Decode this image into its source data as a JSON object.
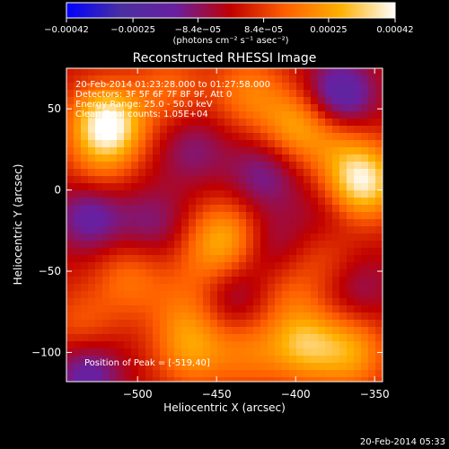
{
  "chart_data": {
    "type": "heatmap",
    "title": "Reconstructed RHESSI Image",
    "xlabel": "Heliocentric X (arcsec)",
    "ylabel": "Heliocentric Y (arcsec)",
    "xlim": [
      -545,
      -345
    ],
    "ylim": [
      -118,
      75
    ],
    "xticks": [
      -500,
      -450,
      -400,
      -350
    ],
    "xtick_labels": [
      "−500",
      "−450",
      "−400",
      "−350"
    ],
    "yticks": [
      50,
      0,
      -50,
      -100
    ],
    "ytick_labels": [
      "50",
      "0",
      "−50",
      "−100"
    ],
    "colorbar": {
      "range": [
        -0.00042,
        0.00042
      ],
      "ticks": [
        -0.00042,
        -0.00025,
        -8.4e-05,
        8.4e-05,
        0.00025,
        0.00042
      ],
      "tick_labels": [
        "−0.00042",
        "−0.00025",
        "−8.4e−05",
        "8.4e−05",
        "0.00025",
        "0.00042"
      ],
      "units": "(photons cm⁻² s⁻¹ asec⁻²)",
      "colors": [
        "#0000ff",
        "#4b2fa0",
        "#6a1fa0",
        "#c00000",
        "#ff6000",
        "#ffb000",
        "#ffffff"
      ]
    },
    "annotations": [
      "20-Feb-2014 01:23:28.000  to 01:27:58.000",
      "Detectors: 3F 5F 6F 7F 8F 9F, Att 0",
      "Energy Range: 25.0 - 50.0 keV",
      "Clean      Total counts: 1.05E+04",
      "Position of Peak = [-519,40]"
    ],
    "sources": [
      {
        "x": -519,
        "y": 40,
        "value": 0.00042
      },
      {
        "x": -358,
        "y": 5,
        "value": 0.00038
      },
      {
        "x": -445,
        "y": -30,
        "value": 0.00024
      },
      {
        "x": -400,
        "y": 40,
        "value": 0.00022
      },
      {
        "x": -430,
        "y": 60,
        "value": 0.00016
      },
      {
        "x": -480,
        "y": 62,
        "value": 0.00012
      },
      {
        "x": -395,
        "y": -95,
        "value": 0.00026
      },
      {
        "x": -365,
        "y": -100,
        "value": 0.00022
      },
      {
        "x": -505,
        "y": -55,
        "value": 0.00014
      },
      {
        "x": -470,
        "y": -78,
        "value": 0.00012
      },
      {
        "x": -465,
        "y": -100,
        "value": 0.00018
      },
      {
        "x": -430,
        "y": -100,
        "value": 0.00014
      },
      {
        "x": -535,
        "y": -85,
        "value": 0.00012
      },
      {
        "x": -405,
        "y": -62,
        "value": 0.0001
      },
      {
        "x": -375,
        "y": 30,
        "value": 0.00012
      },
      {
        "x": -525,
        "y": 10,
        "value": 0.0001
      },
      {
        "x": -380,
        "y": -40,
        "value": 9e-05
      },
      {
        "x": -460,
        "y": -50,
        "value": 8e-05
      },
      {
        "x": -372,
        "y": 58,
        "value": -0.00025
      },
      {
        "x": -530,
        "y": -15,
        "value": -0.0002
      },
      {
        "x": -532,
        "y": -112,
        "value": -0.0002
      },
      {
        "x": -420,
        "y": 10,
        "value": -0.00015
      },
      {
        "x": -465,
        "y": 25,
        "value": -0.00012
      },
      {
        "x": -490,
        "y": -20,
        "value": -0.00012
      },
      {
        "x": -415,
        "y": -35,
        "value": -0.0001
      },
      {
        "x": -440,
        "y": -65,
        "value": -0.00012
      },
      {
        "x": -360,
        "y": -60,
        "value": -0.0001
      },
      {
        "x": -380,
        "y": -15,
        "value": -8e-05
      }
    ]
  },
  "footer_timestamp": "20-Feb-2014 05:33"
}
